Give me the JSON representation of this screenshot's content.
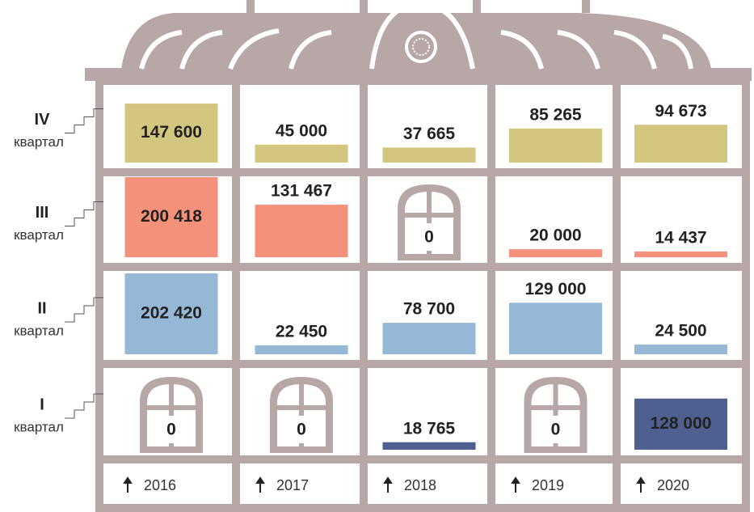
{
  "chart_data": {
    "type": "building",
    "categories": [
      "2016",
      "2017",
      "2018",
      "2019",
      "2020"
    ],
    "quarter_label": "квартал",
    "series": [
      {
        "name": "IV",
        "color": "#d3c67e",
        "values": [
          147600,
          45000,
          37665,
          85265,
          94673
        ],
        "value_labels": [
          "147 600",
          "45 000",
          "37 665",
          "85 265",
          "94 673"
        ]
      },
      {
        "name": "III",
        "color": "#f4917b",
        "values": [
          200418,
          131467,
          0,
          20000,
          14437
        ],
        "value_labels": [
          "200 418",
          "131 467",
          "0",
          "20 000",
          "14 437"
        ]
      },
      {
        "name": "II",
        "color": "#95b8d7",
        "values": [
          202420,
          22450,
          78700,
          129000,
          24500
        ],
        "value_labels": [
          "202 420",
          "22 450",
          "78 700",
          "129 000",
          "24 500"
        ]
      },
      {
        "name": "I",
        "color": "#4f5f90",
        "values": [
          0,
          0,
          18765,
          0,
          128000
        ],
        "value_labels": [
          "0",
          "0",
          "18 765",
          "0",
          "128 000"
        ]
      }
    ]
  }
}
